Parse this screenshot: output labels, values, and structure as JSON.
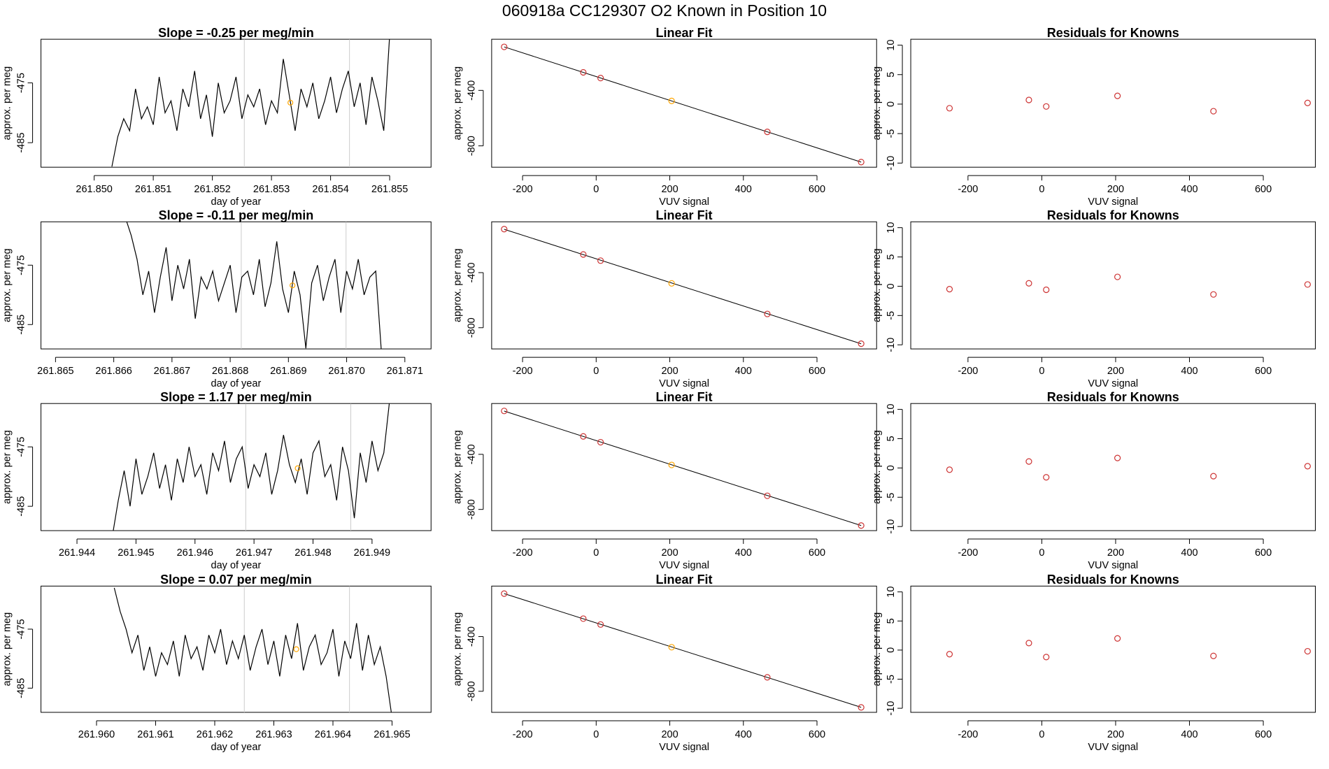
{
  "title": "060918a      CC129307   O2 Known in Position  10",
  "chart_data": [
    {
      "type": "line",
      "title": "Slope =  -0.25  per meg/min",
      "xlabel": "day of year",
      "ylabel": "approx. per meg",
      "color": "#000000",
      "x": [
        261.8503,
        261.8504,
        261.8505,
        261.8506,
        261.8507,
        261.8508,
        261.8509,
        261.851,
        261.8511,
        261.8512,
        261.8513,
        261.8514,
        261.8515,
        261.8516,
        261.8517,
        261.8518,
        261.8519,
        261.852,
        261.8521,
        261.8522,
        261.8523,
        261.8524,
        261.8525,
        261.8526,
        261.8527,
        261.8528,
        261.8529,
        261.853,
        261.8531,
        261.8532,
        261.8533,
        261.8534,
        261.8535,
        261.8536,
        261.8537,
        261.8538,
        261.8539,
        261.854,
        261.8541,
        261.8542,
        261.8543,
        261.8544,
        261.8545,
        261.8546,
        261.8547,
        261.8548,
        261.8549,
        261.855
      ],
      "values": [
        -489,
        -484,
        -481,
        -483,
        -476,
        -481,
        -479,
        -482,
        -474,
        -480,
        -478,
        -483,
        -476,
        -479,
        -473,
        -481,
        -477,
        -484,
        -475,
        -480,
        -478,
        -474,
        -481,
        -477,
        -479,
        -476,
        -482,
        -478,
        -480,
        -471,
        -477,
        -483,
        -476,
        -479,
        -475,
        -481,
        -478,
        -474,
        -480,
        -476,
        -473,
        -479,
        -475,
        -482,
        -474,
        -478,
        -483,
        -467
      ],
      "xlim": [
        261.8491,
        261.8557
      ],
      "ylim": [
        -489.1,
        -467.7
      ],
      "xticks": [
        {
          "value": 261.85,
          "label": "261.850"
        },
        261.851,
        261.852,
        261.853,
        261.854,
        261.855
      ],
      "yticks": [
        -475,
        -485
      ],
      "vlines": [
        261.85254,
        261.85432
      ],
      "vline_color": "#cccccc",
      "highlight": {
        "x": 261.85332,
        "y": -478.3,
        "color": "#ffa500"
      }
    },
    {
      "type": "scatter",
      "title": "Linear Fit",
      "xlabel": "VUV signal",
      "ylabel": "approx. per meg",
      "x": [
        -250,
        -35,
        12,
        205,
        465,
        720
      ],
      "values": [
        -86,
        -270,
        -311,
        -476,
        -699,
        -917
      ],
      "colors": [
        "#cd3333",
        "#cd3333",
        "#cd3333",
        "#ffa500",
        "#cd3333",
        "#cd3333"
      ],
      "fit_line": {
        "intercept": -300.3,
        "slope": -0.857
      },
      "xlim": [
        -284,
        762
      ],
      "ylim": [
        -954,
        -31
      ],
      "xticks": [
        -200,
        0,
        200,
        400,
        600
      ],
      "yticks": [
        -400,
        -800
      ]
    },
    {
      "type": "scatter",
      "title": "Residuals for Knowns",
      "xlabel": "VUV signal",
      "ylabel": "approx. per meg",
      "x": [
        -250,
        -35,
        12,
        205,
        465,
        720
      ],
      "values": [
        -0.7,
        0.7,
        -0.4,
        1.4,
        -1.2,
        0.2
      ],
      "colors": [
        "#cd3333",
        "#cd3333",
        "#cd3333",
        "#cd3333",
        "#cd3333",
        "#cd3333"
      ],
      "xlim": [
        -355,
        741
      ],
      "ylim": [
        -10.7,
        11
      ],
      "xticks": [
        -200,
        0,
        200,
        400,
        600
      ],
      "yticks": [
        -10,
        -5,
        0,
        5,
        10
      ]
    },
    {
      "type": "line",
      "title": "Slope =  -0.11  per meg/min",
      "xlabel": "day of year",
      "ylabel": "approx. per meg",
      "color": "#000000",
      "x": [
        261.8662,
        261.8663,
        261.8664,
        261.8665,
        261.8666,
        261.8667,
        261.8668,
        261.8669,
        261.867,
        261.8671,
        261.8672,
        261.8673,
        261.8674,
        261.8675,
        261.8676,
        261.8677,
        261.8678,
        261.8679,
        261.868,
        261.8681,
        261.8682,
        261.8683,
        261.8684,
        261.8685,
        261.8686,
        261.8687,
        261.8688,
        261.8689,
        261.869,
        261.8691,
        261.8692,
        261.8693,
        261.8694,
        261.8695,
        261.8696,
        261.8697,
        261.8698,
        261.8699,
        261.87,
        261.8701,
        261.8702,
        261.8703,
        261.8704,
        261.8705,
        261.8706
      ],
      "values": [
        -467,
        -470,
        -474,
        -480,
        -476,
        -483,
        -477,
        -472,
        -481,
        -475,
        -479,
        -474,
        -484,
        -477,
        -479,
        -476,
        -481,
        -478,
        -475,
        -483,
        -477,
        -476,
        -480,
        -474,
        -482,
        -478,
        -471,
        -479,
        -483,
        -476,
        -480,
        -489,
        -478,
        -475,
        -481,
        -477,
        -474,
        -483,
        -476,
        -479,
        -474,
        -480,
        -477,
        -476,
        -490
      ],
      "xlim": [
        261.86475,
        261.87145
      ],
      "ylim": [
        -489.1,
        -467.7
      ],
      "xticks": [
        261.865,
        261.866,
        261.867,
        261.868,
        261.869,
        {
          "value": 261.87,
          "label": "261.870"
        },
        261.871
      ],
      "yticks": [
        -475,
        -485
      ],
      "vlines": [
        261.86819,
        261.86999
      ],
      "vline_color": "#cccccc",
      "highlight": {
        "x": 261.86907,
        "y": -478.4,
        "color": "#ffa500"
      }
    },
    {
      "type": "scatter",
      "title": "Linear Fit",
      "xlabel": "VUV signal",
      "ylabel": "approx. per meg",
      "x": [
        -250,
        -35,
        12,
        205,
        465,
        720
      ],
      "values": [
        -84,
        -268,
        -313,
        -478,
        -700,
        -916
      ],
      "colors": [
        "#cd3333",
        "#cd3333",
        "#cd3333",
        "#ffa500",
        "#cd3333",
        "#cd3333"
      ],
      "fit_line": {
        "intercept": -299.5,
        "slope": -0.857
      },
      "xlim": [
        -284,
        762
      ],
      "ylim": [
        -954,
        -31
      ],
      "xticks": [
        -200,
        0,
        200,
        400,
        600
      ],
      "yticks": [
        -400,
        -800
      ]
    },
    {
      "type": "scatter",
      "title": "Residuals for Knowns",
      "xlabel": "VUV signal",
      "ylabel": "approx. per meg",
      "x": [
        -250,
        -35,
        12,
        205,
        465,
        720
      ],
      "values": [
        -0.5,
        0.5,
        -0.6,
        1.6,
        -1.4,
        0.3
      ],
      "colors": [
        "#cd3333",
        "#cd3333",
        "#cd3333",
        "#cd3333",
        "#cd3333",
        "#cd3333"
      ],
      "xlim": [
        -355,
        741
      ],
      "ylim": [
        -10.7,
        11
      ],
      "xticks": [
        -200,
        0,
        200,
        400,
        600
      ],
      "yticks": [
        -10,
        -5,
        0,
        5,
        10
      ]
    },
    {
      "type": "line",
      "title": "Slope =  1.17  per meg/min",
      "xlabel": "day of year",
      "ylabel": "approx. per meg",
      "color": "#000000",
      "x": [
        261.9446,
        261.9447,
        261.9448,
        261.9449,
        261.945,
        261.9451,
        261.9452,
        261.9453,
        261.9454,
        261.9455,
        261.9456,
        261.9457,
        261.9458,
        261.9459,
        261.946,
        261.9461,
        261.9462,
        261.9463,
        261.9464,
        261.9465,
        261.9466,
        261.9467,
        261.9468,
        261.9469,
        261.947,
        261.9471,
        261.9472,
        261.9473,
        261.9474,
        261.9475,
        261.9476,
        261.9477,
        261.9478,
        261.9479,
        261.948,
        261.9481,
        261.9482,
        261.9483,
        261.9484,
        261.9485,
        261.9486,
        261.9487,
        261.9488,
        261.9489,
        261.949,
        261.9491,
        261.9492,
        261.9493
      ],
      "values": [
        -490,
        -484,
        -479,
        -485,
        -477,
        -483,
        -480,
        -476,
        -482,
        -478,
        -484,
        -477,
        -481,
        -475,
        -480,
        -478,
        -483,
        -476,
        -479,
        -474,
        -481,
        -477,
        -475,
        -482,
        -478,
        -480,
        -476,
        -483,
        -479,
        -473,
        -478,
        -481,
        -477,
        -483,
        -476,
        -474,
        -480,
        -478,
        -484,
        -475,
        -479,
        -487,
        -476,
        -481,
        -474,
        -479,
        -476,
        -467
      ],
      "xlim": [
        261.94339,
        261.95
      ],
      "ylim": [
        -489.1,
        -467.7
      ],
      "xticks": [
        261.944,
        261.945,
        261.946,
        261.947,
        261.948,
        261.949
      ],
      "yticks": [
        -475,
        -485
      ],
      "vlines": [
        261.94686,
        261.94864
      ],
      "vline_color": "#cccccc",
      "highlight": {
        "x": 261.94774,
        "y": -478.6,
        "color": "#ffa500"
      }
    },
    {
      "type": "scatter",
      "title": "Linear Fit",
      "xlabel": "VUV signal",
      "ylabel": "approx. per meg",
      "x": [
        -250,
        -35,
        12,
        205,
        465,
        720
      ],
      "values": [
        -85,
        -270,
        -312,
        -477,
        -701,
        -917
      ],
      "colors": [
        "#cd3333",
        "#cd3333",
        "#cd3333",
        "#ffa500",
        "#cd3333",
        "#cd3333"
      ],
      "fit_line": {
        "intercept": -300.1,
        "slope": -0.857
      },
      "xlim": [
        -284,
        762
      ],
      "ylim": [
        -954,
        -31
      ],
      "xticks": [
        -200,
        0,
        200,
        400,
        600
      ],
      "yticks": [
        -400,
        -800
      ]
    },
    {
      "type": "scatter",
      "title": "Residuals for Knowns",
      "xlabel": "VUV signal",
      "ylabel": "approx. per meg",
      "x": [
        -250,
        -35,
        12,
        205,
        465,
        720
      ],
      "values": [
        -0.3,
        1.1,
        -1.6,
        1.7,
        -1.4,
        0.3
      ],
      "colors": [
        "#cd3333",
        "#cd3333",
        "#cd3333",
        "#cd3333",
        "#cd3333",
        "#cd3333"
      ],
      "xlim": [
        -355,
        741
      ],
      "ylim": [
        -10.7,
        11
      ],
      "xticks": [
        -200,
        0,
        200,
        400,
        600
      ],
      "yticks": [
        -10,
        -5,
        0,
        5,
        10
      ]
    },
    {
      "type": "line",
      "title": "Slope =  0.07  per meg/min",
      "xlabel": "day of year",
      "ylabel": "approx. per meg",
      "color": "#000000",
      "x": [
        261.9603,
        261.9604,
        261.9605,
        261.9606,
        261.9607,
        261.9608,
        261.9609,
        261.961,
        261.9611,
        261.9612,
        261.9613,
        261.9614,
        261.9615,
        261.9616,
        261.9617,
        261.9618,
        261.9619,
        261.962,
        261.9621,
        261.9622,
        261.9623,
        261.9624,
        261.9625,
        261.9626,
        261.9627,
        261.9628,
        261.9629,
        261.963,
        261.9631,
        261.9632,
        261.9633,
        261.9634,
        261.9635,
        261.9636,
        261.9637,
        261.9638,
        261.9639,
        261.964,
        261.9641,
        261.9642,
        261.9643,
        261.9644,
        261.9645,
        261.9646,
        261.9647,
        261.9648,
        261.9649,
        261.965
      ],
      "values": [
        -468,
        -472,
        -475,
        -479,
        -476,
        -482,
        -478,
        -483,
        -479,
        -481,
        -477,
        -483,
        -476,
        -480,
        -478,
        -482,
        -476,
        -479,
        -475,
        -481,
        -477,
        -480,
        -476,
        -482,
        -478,
        -475,
        -481,
        -477,
        -483,
        -476,
        -480,
        -474,
        -482,
        -478,
        -476,
        -481,
        -479,
        -475,
        -483,
        -477,
        -480,
        -474,
        -482,
        -476,
        -481,
        -478,
        -483,
        -490
      ],
      "xlim": [
        261.95906,
        261.96566
      ],
      "ylim": [
        -489.1,
        -467.7
      ],
      "xticks": [
        {
          "value": 261.96,
          "label": "261.960"
        },
        261.961,
        261.962,
        261.963,
        261.964,
        261.965
      ],
      "yticks": [
        -475,
        -485
      ],
      "vlines": [
        261.9625,
        261.96428
      ],
      "vline_color": "#cccccc",
      "highlight": {
        "x": 261.96338,
        "y": -478.4,
        "color": "#ffa500"
      }
    },
    {
      "type": "scatter",
      "title": "Linear Fit",
      "xlabel": "VUV signal",
      "ylabel": "approx. per meg",
      "x": [
        -250,
        -35,
        12,
        205,
        465,
        720
      ],
      "values": [
        -86,
        -269,
        -312,
        -478,
        -698,
        -918
      ],
      "colors": [
        "#cd3333",
        "#cd3333",
        "#cd3333",
        "#ffa500",
        "#cd3333",
        "#cd3333"
      ],
      "fit_line": {
        "intercept": -300.3,
        "slope": -0.857
      },
      "xlim": [
        -284,
        762
      ],
      "ylim": [
        -954,
        -31
      ],
      "xticks": [
        -200,
        0,
        200,
        400,
        600
      ],
      "yticks": [
        -400,
        -800
      ]
    },
    {
      "type": "scatter",
      "title": "Residuals for Knowns",
      "xlabel": "VUV signal",
      "ylabel": "approx. per meg",
      "x": [
        -250,
        -35,
        12,
        205,
        465,
        720
      ],
      "values": [
        -0.7,
        1.2,
        -1.2,
        2.0,
        -1.0,
        -0.2
      ],
      "colors": [
        "#cd3333",
        "#cd3333",
        "#cd3333",
        "#cd3333",
        "#cd3333",
        "#cd3333"
      ],
      "xlim": [
        -355,
        741
      ],
      "ylim": [
        -10.7,
        11
      ],
      "xticks": [
        -200,
        0,
        200,
        400,
        600
      ],
      "yticks": [
        -10,
        -5,
        0,
        5,
        10
      ]
    }
  ]
}
